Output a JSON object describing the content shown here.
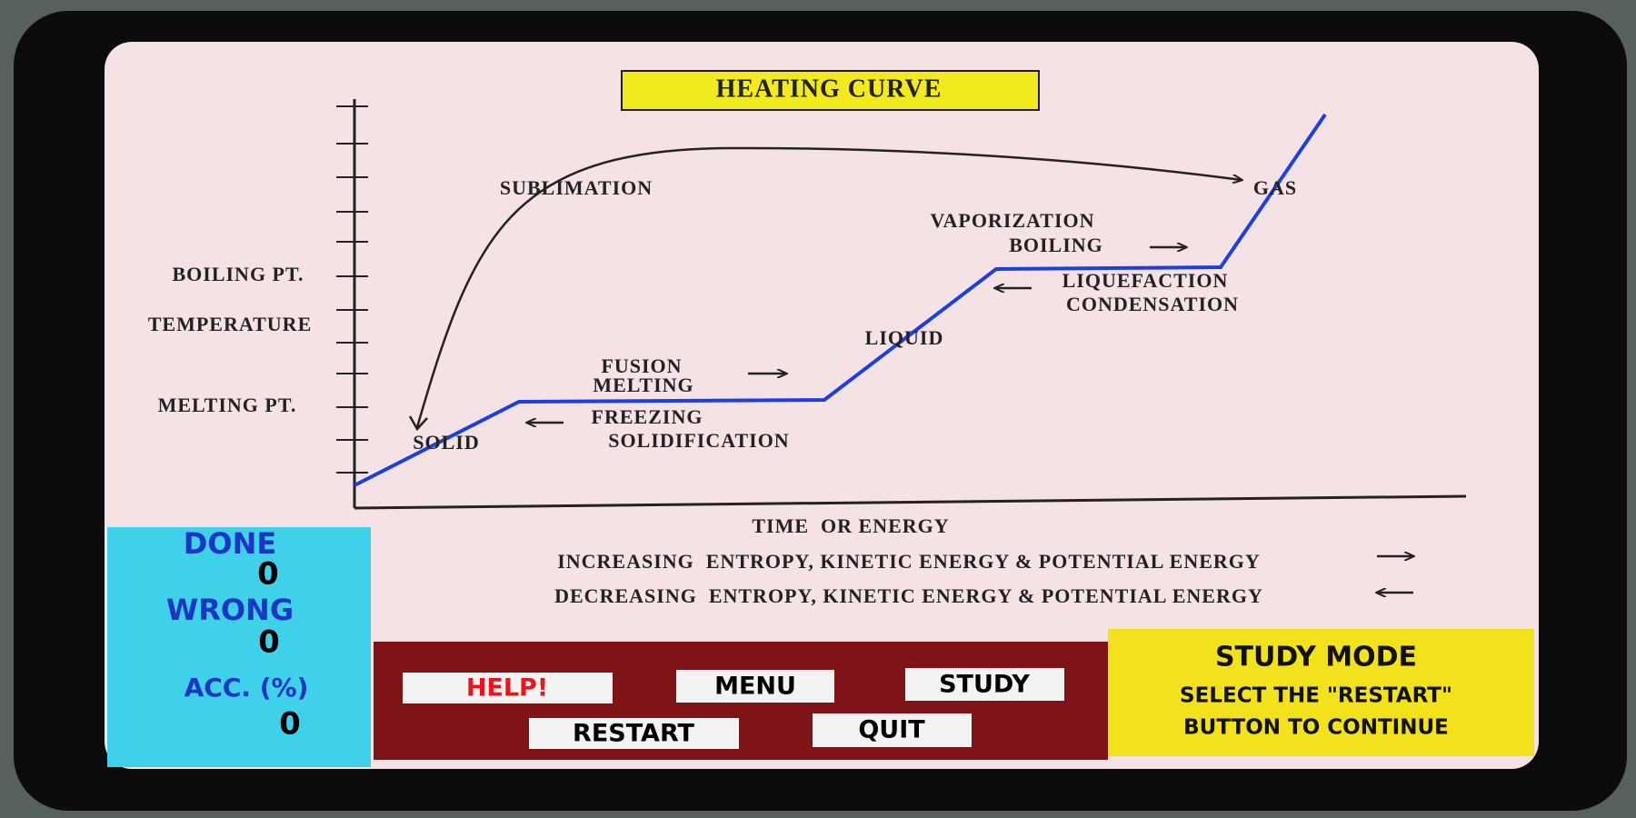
{
  "title": "HEATING CURVE",
  "diagram": {
    "y_axis_labels": [
      "BOILING PT.",
      "TEMPERATURE",
      "MELTING PT."
    ],
    "x_axis_label": "TIME  OR ENERGY",
    "phases": [
      "SOLID",
      "LIQUID",
      "GAS"
    ],
    "processes": {
      "sublimation": "SUBLIMATION",
      "vaporization": "VAPORIZATION",
      "boiling": "BOILING",
      "liquefaction": "LIQUEFACTION",
      "condensation": "CONDENSATION",
      "fusion": "FUSION",
      "melting": "MELTING",
      "freezing": "FREEZING",
      "solidification": "SOLIDIFICATION"
    }
  },
  "legend": [
    "INCREASING  ENTROPY, KINETIC ENERGY & POTENTIAL ENERGY",
    "DECREASING  ENTROPY, KINETIC ENERGY & POTENTIAL ENERGY"
  ],
  "score": {
    "done_label": "DONE",
    "done": 0,
    "wrong_label": "WRONG",
    "wrong": 0,
    "accuracy_label": "ACC. (%)",
    "accuracy": 0
  },
  "buttons": [
    "HELP!",
    "MENU",
    "STUDY",
    "RESTART",
    "QUIT"
  ],
  "status": {
    "title": "STUDY MODE",
    "message": [
      "SELECT THE \"RESTART\"",
      "BUTTON TO CONTINUE"
    ]
  }
}
